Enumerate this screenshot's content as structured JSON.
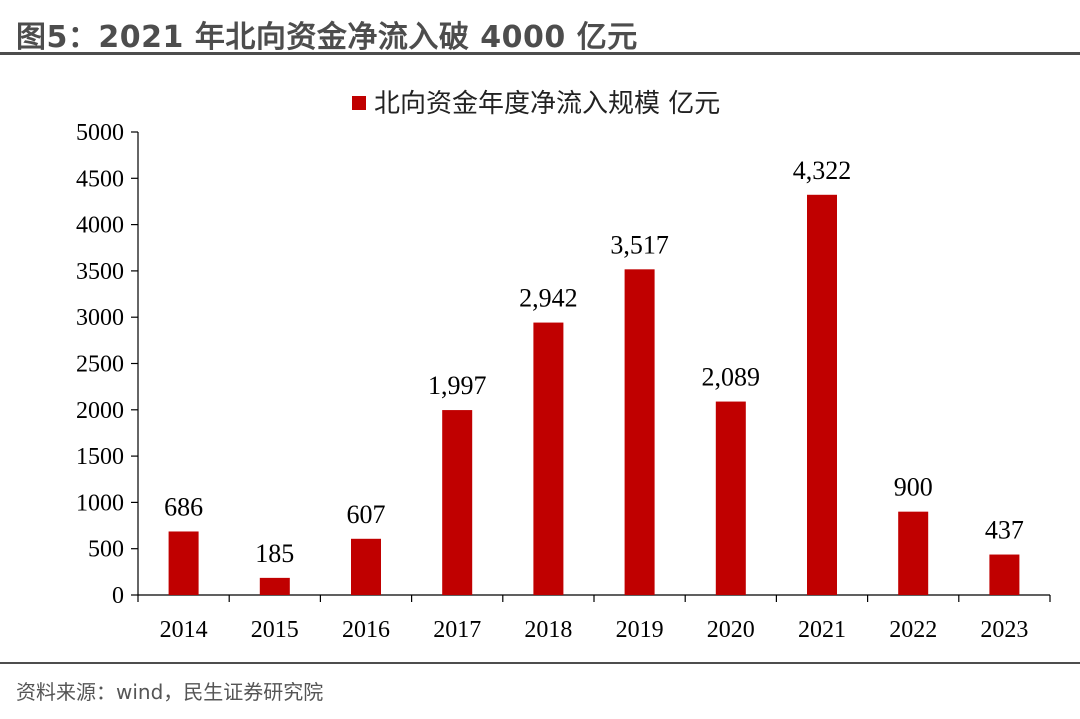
{
  "title": "图5：2021 年北向资金净流入破 4000 亿元",
  "source": "资料来源：wind，民生证券研究院",
  "chart_data": {
    "type": "bar",
    "legend": "北向资金年度净流入规模 亿元",
    "legend_position": "top",
    "categories": [
      "2014",
      "2015",
      "2016",
      "2017",
      "2018",
      "2019",
      "2020",
      "2021",
      "2022",
      "2023"
    ],
    "values": [
      686,
      185,
      607,
      1997,
      2942,
      3517,
      2089,
      4322,
      900,
      437
    ],
    "data_labels": [
      "686",
      "185",
      "607",
      "1,997",
      "2,942",
      "3,517",
      "2,089",
      "4,322",
      "900",
      "437"
    ],
    "ylim": [
      0,
      5000
    ],
    "yticks": [
      "0",
      "500",
      "1000",
      "1500",
      "2000",
      "2500",
      "3000",
      "3500",
      "4000",
      "4500",
      "5000"
    ],
    "grid": false,
    "bar_color": "#C00000"
  }
}
